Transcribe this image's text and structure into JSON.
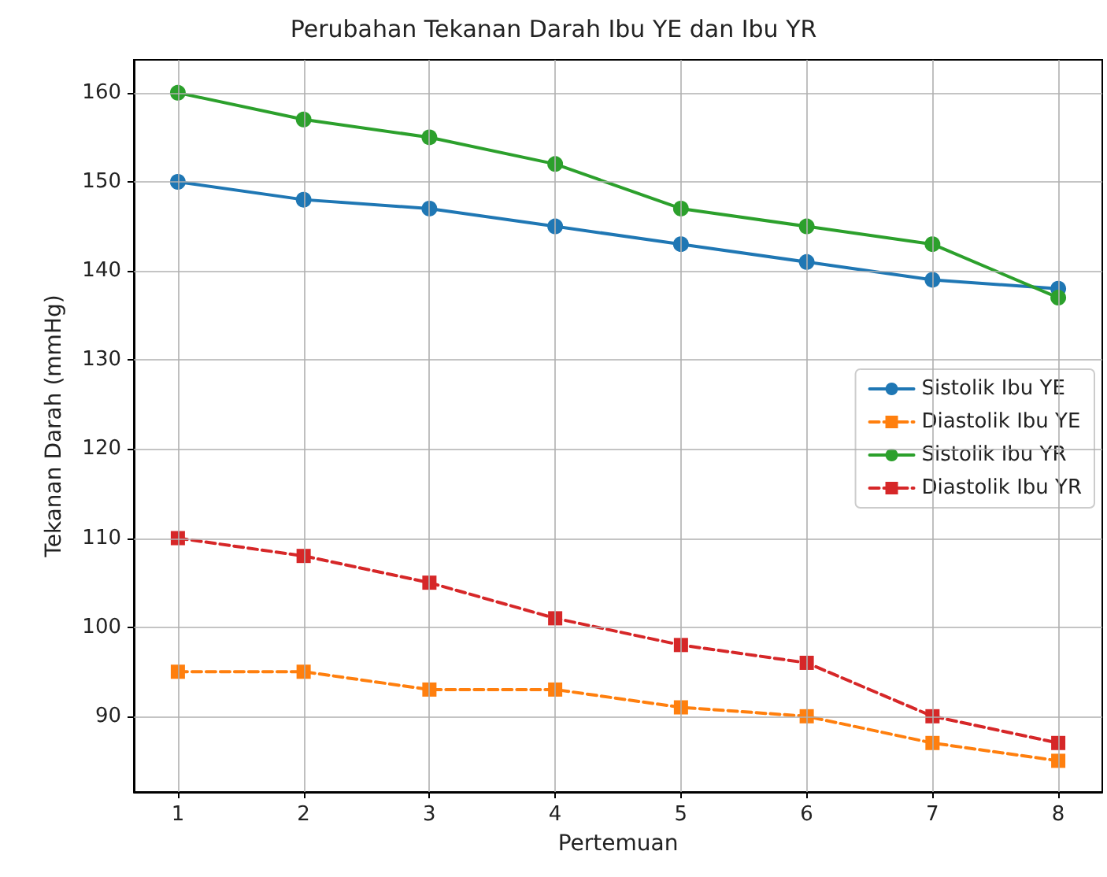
{
  "chart_data": {
    "type": "line",
    "title": "Perubahan Tekanan Darah Ibu YE dan Ibu YR",
    "xlabel": "Pertemuan",
    "ylabel": "Tekanan Darah (mmHg)",
    "x": [
      1,
      2,
      3,
      4,
      5,
      6,
      7,
      8
    ],
    "series": [
      {
        "name": "Sistolik Ibu YE",
        "color": "#1f77b4",
        "marker": "circle",
        "line_style": "solid",
        "values": [
          150,
          148,
          147,
          145,
          143,
          141,
          139,
          138
        ]
      },
      {
        "name": "Diastolik Ibu YE",
        "color": "#ff7f0e",
        "marker": "square",
        "line_style": "dashed",
        "values": [
          95,
          95,
          93,
          93,
          91,
          90,
          87,
          85
        ]
      },
      {
        "name": "Sistolik Ibu YR",
        "color": "#2ca02c",
        "marker": "circle",
        "line_style": "solid",
        "values": [
          160,
          157,
          155,
          152,
          147,
          145,
          143,
          137
        ]
      },
      {
        "name": "Diastolik Ibu YR",
        "color": "#d62728",
        "marker": "square",
        "line_style": "dashed",
        "values": [
          110,
          108,
          105,
          101,
          98,
          96,
          90,
          87
        ]
      }
    ],
    "xlim": [
      0.65,
      8.35
    ],
    "xticks": [
      1,
      2,
      3,
      4,
      5,
      6,
      7,
      8
    ],
    "ylim": [
      81.5,
      163.7
    ],
    "yticks": [
      90,
      100,
      110,
      120,
      130,
      140,
      150,
      160
    ],
    "grid": true,
    "legend": "right"
  }
}
